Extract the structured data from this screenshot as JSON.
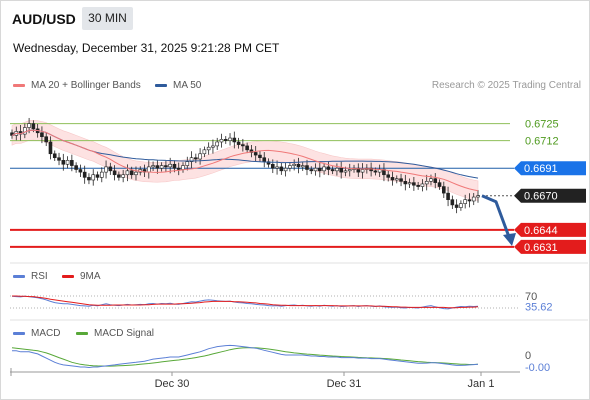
{
  "header": {
    "pair": "AUD/USD",
    "timeframe": "30 MIN",
    "datetime": "Wednesday, December 31, 2025 9:21:28 PM CET",
    "credit": "Research © 2025 Trading Central"
  },
  "legends": {
    "ma20": "MA 20 + Bollinger Bands",
    "ma50": "MA 50",
    "rsi": "RSI",
    "rsi_ma": "9MA",
    "macd": "MACD",
    "macd_signal": "MACD Signal"
  },
  "colors": {
    "ma20": "#f07878",
    "ma50": "#2f5b9c",
    "bollinger_fill": "#fde2e2",
    "resistance": "#8fbf5a",
    "support": "#e31c1c",
    "pivot": "#1f5fa8",
    "price_tag": "#222222",
    "pivot_tag": "#1a73e8",
    "forecast_arrow": "#2f5b9c",
    "rsi": "#5b7fd6",
    "rsi_ma": "#e31c1c",
    "macd": "#5b7fd6",
    "macd_signal": "#58a838"
  },
  "chart_data": [
    {
      "type": "candlestick",
      "ylim": [
        0.6621,
        0.6743
      ],
      "x_ticks": [
        "Dec 30",
        "Dec 31",
        "Jan 1"
      ],
      "levels": [
        {
          "value": 0.6725,
          "label": "0.6725",
          "kind": "resistance"
        },
        {
          "value": 0.6712,
          "label": "0.6712",
          "kind": "resistance"
        },
        {
          "value": 0.6691,
          "label": "0.6691",
          "kind": "pivot"
        },
        {
          "value": 0.667,
          "label": "0.6670",
          "kind": "last"
        },
        {
          "value": 0.6644,
          "label": "0.6644",
          "kind": "support"
        },
        {
          "value": 0.6631,
          "label": "0.6631",
          "kind": "support"
        }
      ],
      "close": [
        0.6716,
        0.6719,
        0.6717,
        0.6722,
        0.6725,
        0.6721,
        0.6718,
        0.6715,
        0.6711,
        0.6702,
        0.6699,
        0.6697,
        0.6694,
        0.6697,
        0.6693,
        0.669,
        0.6688,
        0.6684,
        0.6682,
        0.6686,
        0.6684,
        0.6688,
        0.6692,
        0.6689,
        0.6686,
        0.6684,
        0.6686,
        0.6689,
        0.6686,
        0.6688,
        0.669,
        0.6688,
        0.6692,
        0.6693,
        0.6691,
        0.6693,
        0.6692,
        0.6694,
        0.6691,
        0.669,
        0.6693,
        0.6696,
        0.6699,
        0.6698,
        0.6702,
        0.6705,
        0.6707,
        0.6708,
        0.6711,
        0.6713,
        0.6712,
        0.6714,
        0.6711,
        0.6709,
        0.6708,
        0.6705,
        0.6703,
        0.6701,
        0.6699,
        0.6696,
        0.6694,
        0.6691,
        0.6692,
        0.6689,
        0.6691,
        0.6693,
        0.6694,
        0.6692,
        0.6693,
        0.669,
        0.6689,
        0.6691,
        0.6689,
        0.6692,
        0.669,
        0.6689,
        0.6691,
        0.6688,
        0.6689,
        0.669,
        0.6691,
        0.6688,
        0.669,
        0.6691,
        0.6689,
        0.6688,
        0.669,
        0.6686,
        0.6684,
        0.6682,
        0.6683,
        0.6681,
        0.6679,
        0.668,
        0.6678,
        0.6677,
        0.6679,
        0.6681,
        0.6683,
        0.668,
        0.6677,
        0.6672,
        0.6667,
        0.6663,
        0.6661,
        0.6664,
        0.6667,
        0.6666,
        0.6669,
        0.667
      ],
      "forecast": {
        "from": 0.667,
        "to": 0.6634
      }
    },
    {
      "type": "line",
      "name": "RSI",
      "ylim": [
        0,
        100
      ],
      "tick_labels": [
        "70",
        "35.62"
      ],
      "rsi_last": 35.62,
      "rsi": [
        69,
        68,
        67,
        69,
        68,
        66,
        64,
        61,
        57,
        52,
        48,
        46,
        44,
        44,
        42,
        40,
        38,
        37,
        36,
        39,
        37,
        41,
        44,
        41,
        39,
        38,
        40,
        42,
        40,
        41,
        42,
        41,
        44,
        45,
        43,
        45,
        44,
        46,
        43,
        42,
        45,
        48,
        51,
        50,
        53,
        56,
        57,
        56,
        54,
        53,
        52,
        53,
        50,
        48,
        47,
        45,
        44,
        42,
        41,
        40,
        38,
        37,
        38,
        36,
        38,
        39,
        40,
        38,
        39,
        37,
        36,
        38,
        36,
        39,
        37,
        36,
        38,
        35,
        36,
        37,
        38,
        35,
        37,
        38,
        36,
        35,
        37,
        34,
        33,
        32,
        33,
        31,
        30,
        32,
        31,
        30,
        33,
        36,
        38,
        34,
        31,
        28,
        27,
        30,
        33,
        35,
        34,
        36,
        35,
        35.62
      ],
      "rsi_ma": [
        70,
        70,
        69,
        69,
        68,
        68,
        66,
        64,
        62,
        59,
        57,
        55,
        53,
        51,
        49,
        47,
        45,
        43,
        41,
        40,
        39,
        39,
        39,
        39,
        40,
        40,
        40,
        40,
        40,
        40,
        40,
        41,
        41,
        42,
        43,
        43,
        43,
        43,
        43,
        44,
        44,
        45,
        46,
        47,
        48,
        50,
        51,
        52,
        52,
        52,
        52,
        52,
        51,
        51,
        50,
        49,
        48,
        47,
        45,
        44,
        43,
        41,
        40,
        39,
        39,
        38,
        38,
        38,
        38,
        38,
        38,
        38,
        38,
        38,
        38,
        38,
        37,
        37,
        37,
        37,
        37,
        37,
        37,
        37,
        37,
        36,
        36,
        36,
        35,
        34,
        34,
        33,
        33,
        32,
        32,
        32,
        32,
        32,
        32,
        32,
        32,
        32,
        31,
        31,
        31,
        32,
        32,
        33,
        33,
        34
      ]
    },
    {
      "type": "line",
      "name": "MACD",
      "tick_labels": [
        "0",
        "-0.00"
      ],
      "macd": [
        0.3,
        0.3,
        0.2,
        0.2,
        0.2,
        0.1,
        0.0,
        -0.2,
        -0.4,
        -0.6,
        -0.8,
        -0.95,
        -1.05,
        -1.1,
        -1.15,
        -1.2,
        -1.25,
        -1.25,
        -1.3,
        -1.25,
        -1.25,
        -1.2,
        -1.15,
        -1.1,
        -1.05,
        -1.0,
        -0.95,
        -0.9,
        -0.85,
        -0.8,
        -0.75,
        -0.7,
        -0.6,
        -0.5,
        -0.45,
        -0.4,
        -0.35,
        -0.3,
        -0.3,
        -0.3,
        -0.2,
        -0.1,
        0.0,
        0.1,
        0.2,
        0.35,
        0.5,
        0.6,
        0.7,
        0.75,
        0.8,
        0.82,
        0.8,
        0.75,
        0.7,
        0.65,
        0.6,
        0.55,
        0.45,
        0.35,
        0.25,
        0.15,
        0.05,
        -0.05,
        -0.1,
        -0.1,
        -0.1,
        -0.1,
        -0.1,
        -0.15,
        -0.2,
        -0.2,
        -0.25,
        -0.25,
        -0.3,
        -0.3,
        -0.3,
        -0.35,
        -0.35,
        -0.35,
        -0.35,
        -0.4,
        -0.4,
        -0.4,
        -0.45,
        -0.45,
        -0.45,
        -0.5,
        -0.55,
        -0.6,
        -0.65,
        -0.7,
        -0.75,
        -0.8,
        -0.85,
        -0.9,
        -0.9,
        -0.88,
        -0.85,
        -0.85,
        -0.9,
        -0.95,
        -1.0,
        -1.05,
        -1.1,
        -1.1,
        -1.08,
        -1.05,
        -1.02,
        -1.0
      ],
      "signal": [
        0.6,
        0.55,
        0.5,
        0.45,
        0.4,
        0.35,
        0.3,
        0.2,
        0.1,
        -0.05,
        -0.2,
        -0.35,
        -0.5,
        -0.65,
        -0.8,
        -0.9,
        -1.0,
        -1.05,
        -1.1,
        -1.13,
        -1.15,
        -1.16,
        -1.17,
        -1.17,
        -1.16,
        -1.14,
        -1.12,
        -1.1,
        -1.07,
        -1.04,
        -1.0,
        -0.96,
        -0.92,
        -0.87,
        -0.82,
        -0.77,
        -0.72,
        -0.67,
        -0.62,
        -0.58,
        -0.53,
        -0.48,
        -0.42,
        -0.35,
        -0.28,
        -0.2,
        -0.1,
        0.0,
        0.1,
        0.2,
        0.3,
        0.4,
        0.48,
        0.54,
        0.58,
        0.6,
        0.6,
        0.59,
        0.56,
        0.52,
        0.47,
        0.41,
        0.35,
        0.28,
        0.21,
        0.15,
        0.1,
        0.06,
        0.02,
        -0.02,
        -0.05,
        -0.08,
        -0.11,
        -0.14,
        -0.17,
        -0.2,
        -0.22,
        -0.25,
        -0.27,
        -0.29,
        -0.31,
        -0.33,
        -0.35,
        -0.37,
        -0.38,
        -0.4,
        -0.42,
        -0.44,
        -0.46,
        -0.5,
        -0.54,
        -0.58,
        -0.62,
        -0.66,
        -0.7,
        -0.74,
        -0.77,
        -0.8,
        -0.82,
        -0.83,
        -0.85,
        -0.87,
        -0.9,
        -0.93,
        -0.96,
        -0.99,
        -1.0,
        -1.01,
        -1.01,
        -1.0
      ]
    }
  ]
}
